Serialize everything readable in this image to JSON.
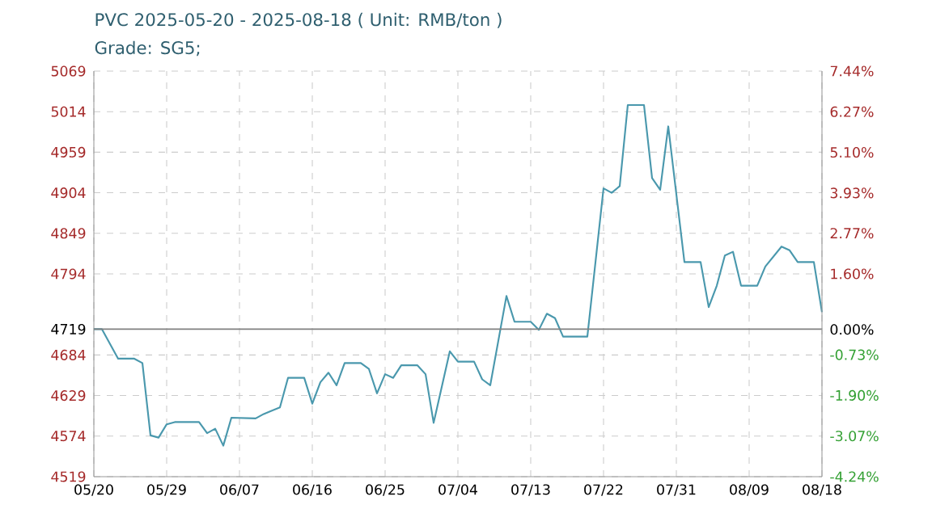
{
  "chart_data": {
    "type": "line",
    "title": "PVC 2025-05-20 - 2025-08-18 ( Unit: RMB/ton )",
    "subtitle": "Grade: SG5;",
    "x": [
      "2025-05-20",
      "2025-05-21",
      "2025-05-23",
      "2025-05-25",
      "2025-05-26",
      "2025-05-27",
      "2025-05-28",
      "2025-05-29",
      "2025-05-30",
      "2025-06-02",
      "2025-06-03",
      "2025-06-04",
      "2025-06-05",
      "2025-06-06",
      "2025-06-09",
      "2025-06-10",
      "2025-06-12",
      "2025-06-13",
      "2025-06-15",
      "2025-06-16",
      "2025-06-17",
      "2025-06-18",
      "2025-06-19",
      "2025-06-20",
      "2025-06-22",
      "2025-06-23",
      "2025-06-24",
      "2025-06-25",
      "2025-06-26",
      "2025-06-27",
      "2025-06-29",
      "2025-06-30",
      "2025-07-01",
      "2025-07-03",
      "2025-07-04",
      "2025-07-06",
      "2025-07-07",
      "2025-07-08",
      "2025-07-10",
      "2025-07-11",
      "2025-07-13",
      "2025-07-14",
      "2025-07-15",
      "2025-07-16",
      "2025-07-17",
      "2025-07-20",
      "2025-07-22",
      "2025-07-23",
      "2025-07-24",
      "2025-07-25",
      "2025-07-27",
      "2025-07-28",
      "2025-07-29",
      "2025-07-30",
      "2025-08-01",
      "2025-08-03",
      "2025-08-04",
      "2025-08-05",
      "2025-08-06",
      "2025-08-07",
      "2025-08-08",
      "2025-08-10",
      "2025-08-11",
      "2025-08-13",
      "2025-08-14",
      "2025-08-15",
      "2025-08-17",
      "2025-08-18"
    ],
    "series": [
      {
        "color": "#4a98ad",
        "values": [
          4719,
          4719,
          4679,
          4679,
          4673,
          4575,
          4572,
          4590,
          4593,
          4593,
          4578,
          4584,
          4561,
          4599,
          4598,
          4604,
          4613,
          4653,
          4653,
          4618,
          4647,
          4660,
          4643,
          4673,
          4673,
          4665,
          4632,
          4658,
          4653,
          4670,
          4670,
          4658,
          4592,
          4689,
          4675,
          4675,
          4651,
          4643,
          4764,
          4729,
          4729,
          4718,
          4740,
          4734,
          4709,
          4709,
          4910,
          4904,
          4913,
          5023,
          5023,
          4924,
          4908,
          4994,
          4810,
          4810,
          4749,
          4778,
          4819,
          4824,
          4778,
          4778,
          4804,
          4831,
          4826,
          4810,
          4810,
          4742
        ]
      }
    ],
    "xlim": [
      "2025-05-20",
      "2025-08-18"
    ],
    "xticks": [
      {
        "value": "2025-05-20",
        "label": "05/20"
      },
      {
        "value": "2025-05-29",
        "label": "05/29"
      },
      {
        "value": "2025-06-07",
        "label": "06/07"
      },
      {
        "value": "2025-06-16",
        "label": "06/16"
      },
      {
        "value": "2025-06-25",
        "label": "06/25"
      },
      {
        "value": "2025-07-04",
        "label": "07/04"
      },
      {
        "value": "2025-07-13",
        "label": "07/13"
      },
      {
        "value": "2025-07-22",
        "label": "07/22"
      },
      {
        "value": "2025-07-31",
        "label": "07/31"
      },
      {
        "value": "2025-08-09",
        "label": "08/09"
      },
      {
        "value": "2025-08-18",
        "label": "08/18"
      }
    ],
    "ylim": [
      4519,
      5069
    ],
    "yticks": [
      4519,
      4574,
      4629,
      4684,
      4719,
      4794,
      4849,
      4904,
      4959,
      5014,
      5069
    ],
    "y2lim": [
      -4.24,
      7.44
    ],
    "y2ticks": [
      {
        "value": -4.24,
        "label": "-4.24%"
      },
      {
        "value": -3.07,
        "label": "-3.07%"
      },
      {
        "value": -1.9,
        "label": "-1.90%"
      },
      {
        "value": -0.73,
        "label": "-0.73%"
      },
      {
        "value": 0,
        "label": "0.00%"
      },
      {
        "value": 1.6,
        "label": "1.60%"
      },
      {
        "value": 2.77,
        "label": "2.77%"
      },
      {
        "value": 3.93,
        "label": "3.93%"
      },
      {
        "value": 5.1,
        "label": "5.10%"
      },
      {
        "value": 6.27,
        "label": "6.27%"
      },
      {
        "value": 7.44,
        "label": "7.44%"
      }
    ],
    "ref_lines": [
      {
        "axis": "y",
        "value": 4719,
        "color": "#808080"
      }
    ],
    "grid": true
  }
}
